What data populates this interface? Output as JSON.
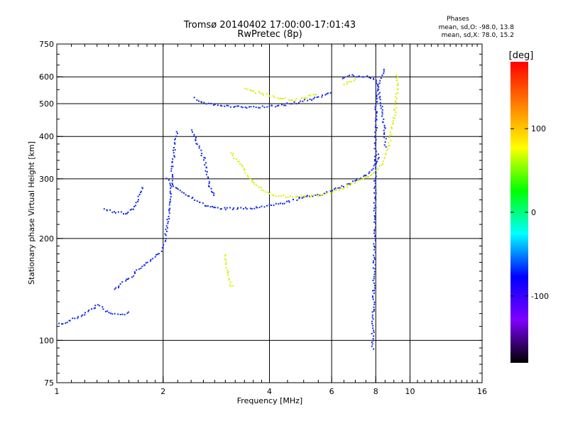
{
  "chart_data": {
    "type": "scatter",
    "title": "Tromsø 20140402 17:00:00-17:01:43",
    "subtitle": "RwPretec (8p)",
    "xlabel": "Frequency [MHz]",
    "ylabel": "Stationary phase Virtual Height [km]",
    "x_scale": "log",
    "y_scale": "log",
    "xlim": [
      1,
      16
    ],
    "ylim": [
      75,
      750
    ],
    "x_ticks": [
      1,
      2,
      4,
      6,
      8,
      10,
      16
    ],
    "y_ticks": [
      75,
      100,
      200,
      300,
      400,
      500,
      600,
      750
    ],
    "grid_x": [
      2,
      4,
      6,
      8,
      10
    ],
    "grid_y": [
      100,
      200,
      300,
      400,
      500,
      600
    ],
    "phase_box": {
      "title": "Phases",
      "line_o": "mean, sd,O: -98.0, 13.8",
      "line_x": "mean, sd,X:  78.0, 15.2"
    },
    "colorbar": {
      "label": "[deg]",
      "range": [
        -180,
        180
      ],
      "ticks": [
        100,
        0,
        -100
      ],
      "colors": [
        "#ff0000",
        "#ff8000",
        "#ffff00",
        "#00ff00",
        "#00ffff",
        "#0000ff",
        "#7f00ff",
        "#000000"
      ]
    },
    "series": [
      {
        "color": "#1428e8",
        "traces": [
          [
            [
              1.0,
              112
            ],
            [
              1.05,
              113
            ],
            [
              1.1,
              116
            ],
            [
              1.15,
              118
            ],
            [
              1.2,
              121
            ],
            [
              1.25,
              124
            ],
            [
              1.3,
              128
            ],
            [
              1.35,
              124
            ],
            [
              1.4,
              121
            ],
            [
              1.45,
              120
            ],
            [
              1.5,
              120
            ],
            [
              1.55,
              120
            ],
            [
              1.6,
              122
            ]
          ],
          [
            [
              1.45,
              142
            ],
            [
              1.55,
              150
            ],
            [
              1.65,
              158
            ],
            [
              1.75,
              167
            ],
            [
              1.85,
              175
            ],
            [
              1.95,
              182
            ],
            [
              2.0,
              190
            ],
            [
              2.02,
              205
            ],
            [
              2.05,
              225
            ],
            [
              2.08,
              255
            ],
            [
              2.1,
              290
            ],
            [
              2.12,
              335
            ],
            [
              2.15,
              380
            ],
            [
              2.18,
              420
            ]
          ],
          [
            [
              2.05,
              300
            ],
            [
              2.15,
              285
            ],
            [
              2.3,
              272
            ],
            [
              2.45,
              262
            ],
            [
              2.6,
              252
            ],
            [
              2.8,
              247
            ],
            [
              3.0,
              246
            ],
            [
              3.3,
              246
            ],
            [
              3.6,
              247
            ],
            [
              3.9,
              250
            ],
            [
              4.2,
              254
            ],
            [
              4.5,
              258
            ],
            [
              4.8,
              263
            ],
            [
              5.2,
              268
            ],
            [
              5.6,
              272
            ],
            [
              6.0,
              278
            ],
            [
              6.5,
              287
            ],
            [
              7.0,
              298
            ],
            [
              7.5,
              310
            ],
            [
              7.8,
              325
            ],
            [
              8.0,
              340
            ],
            [
              8.2,
              360
            ]
          ],
          [
            [
              2.45,
              520
            ],
            [
              2.6,
              505
            ],
            [
              2.8,
              498
            ],
            [
              3.1,
              492
            ],
            [
              3.5,
              490
            ],
            [
              3.9,
              492
            ],
            [
              4.3,
              497
            ],
            [
              4.8,
              507
            ],
            [
              5.3,
              520
            ],
            [
              5.8,
              535
            ],
            [
              6.0,
              545
            ]
          ],
          [
            [
              2.4,
              420
            ],
            [
              2.5,
              380
            ],
            [
              2.6,
              345
            ],
            [
              2.65,
              310
            ],
            [
              2.7,
              285
            ],
            [
              2.8,
              265
            ]
          ],
          [
            [
              1.35,
              245
            ],
            [
              1.45,
              240
            ],
            [
              1.55,
              238
            ],
            [
              1.65,
              245
            ],
            [
              1.75,
              290
            ]
          ],
          [
            [
              6.4,
              600
            ],
            [
              6.7,
              610
            ],
            [
              7.0,
              605
            ],
            [
              7.8,
              600
            ],
            [
              8.0,
              590
            ],
            [
              8.1,
              560
            ],
            [
              8.2,
              520
            ],
            [
              8.3,
              480
            ],
            [
              8.4,
              440
            ],
            [
              8.45,
              400
            ],
            [
              8.5,
              370
            ]
          ],
          [
            [
              7.8,
              95
            ],
            [
              7.85,
              130
            ],
            [
              7.9,
              180
            ],
            [
              7.92,
              260
            ],
            [
              7.95,
              350
            ],
            [
              7.98,
              450
            ],
            [
              8.0,
              550
            ],
            [
              8.5,
              640
            ]
          ]
        ]
      },
      {
        "color": "#d8f000",
        "traces": [
          [
            [
              3.1,
              360
            ],
            [
              3.3,
              330
            ],
            [
              3.5,
              302
            ],
            [
              3.7,
              285
            ],
            [
              4.0,
              272
            ],
            [
              4.3,
              268
            ],
            [
              4.7,
              266
            ],
            [
              5.1,
              268
            ],
            [
              5.5,
              270
            ],
            [
              6.0,
              276
            ],
            [
              6.5,
              284
            ],
            [
              7.0,
              294
            ],
            [
              7.5,
              305
            ],
            [
              8.0,
              318
            ],
            [
              8.3,
              335
            ],
            [
              8.6,
              370
            ],
            [
              8.8,
              410
            ],
            [
              9.0,
              460
            ],
            [
              9.1,
              520
            ],
            [
              9.2,
              580
            ],
            [
              9.15,
              620
            ]
          ],
          [
            [
              3.4,
              555
            ],
            [
              3.6,
              545
            ],
            [
              3.9,
              535
            ],
            [
              4.3,
              520
            ],
            [
              4.7,
              515
            ],
            [
              5.1,
              525
            ],
            [
              5.5,
              540
            ]
          ],
          [
            [
              6.5,
              570
            ],
            [
              6.8,
              585
            ],
            [
              7.1,
              595
            ]
          ],
          [
            [
              3.0,
              180
            ],
            [
              3.0,
              170
            ],
            [
              3.1,
              145
            ],
            [
              3.2,
              145
            ]
          ]
        ]
      }
    ]
  }
}
